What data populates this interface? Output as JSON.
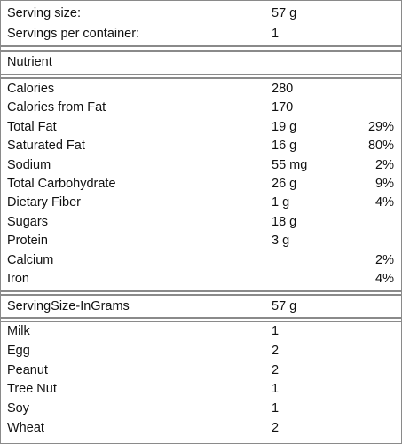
{
  "serving": {
    "rows": [
      {
        "name": "Serving size:",
        "amount": "57 g"
      },
      {
        "name": "Servings per container:",
        "amount": "1"
      }
    ]
  },
  "header": {
    "label": "Nutrient"
  },
  "nutrients": {
    "rows": [
      {
        "name": "Calories",
        "amount": "280"
      },
      {
        "name": "Calories from Fat",
        "amount": "170"
      },
      {
        "name": "Total Fat",
        "amount": "19 g",
        "dv": "29%"
      },
      {
        "name": "Saturated Fat",
        "amount": "16 g",
        "dv": "80%"
      },
      {
        "name": "Sodium",
        "amount": "55 mg",
        "dv": "2%"
      },
      {
        "name": "Total Carbohydrate",
        "amount": "26 g",
        "dv": "9%"
      },
      {
        "name": "Dietary Fiber",
        "amount": "1 g",
        "dv": "4%"
      },
      {
        "name": "Sugars",
        "amount": "18 g"
      },
      {
        "name": "Protein",
        "amount": "3 g"
      },
      {
        "name": "Calcium",
        "dv": "2%"
      },
      {
        "name": "Iron",
        "dv": "4%"
      }
    ]
  },
  "grams": {
    "rows": [
      {
        "name": "ServingSize-InGrams",
        "amount": "57 g"
      }
    ]
  },
  "allergens": {
    "rows": [
      {
        "name": "Milk",
        "amount": "1"
      },
      {
        "name": "Egg",
        "amount": "2"
      },
      {
        "name": "Peanut",
        "amount": "2"
      },
      {
        "name": "Tree Nut",
        "amount": "1"
      },
      {
        "name": "Soy",
        "amount": "1"
      },
      {
        "name": "Wheat",
        "amount": "2"
      }
    ]
  }
}
